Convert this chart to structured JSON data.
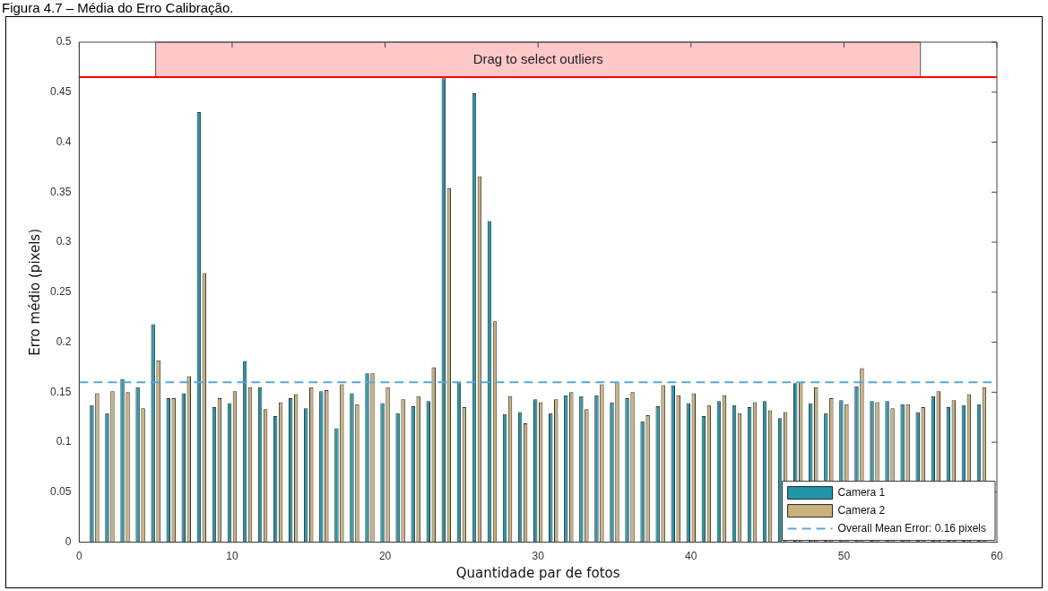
{
  "chart_data": {
    "type": "bar",
    "title": "Figura 4.7 – Média do Erro Calibração.",
    "xlabel": "Quantidade par de fotos",
    "ylabel": "Erro médio (pixels)",
    "x": [
      1,
      2,
      3,
      4,
      5,
      6,
      7,
      8,
      9,
      10,
      11,
      12,
      13,
      14,
      15,
      16,
      17,
      18,
      19,
      20,
      21,
      22,
      23,
      24,
      25,
      26,
      27,
      28,
      29,
      30,
      31,
      32,
      33,
      34,
      35,
      36,
      37,
      38,
      39,
      40,
      41,
      42,
      43,
      44,
      45,
      46,
      47,
      48,
      49,
      50,
      51,
      52,
      53,
      54,
      55,
      56,
      57,
      58,
      59
    ],
    "series": [
      {
        "name": "Camera 1",
        "color": "#2196a8",
        "values": [
          0.137,
          0.129,
          0.163,
          0.155,
          0.218,
          0.144,
          0.149,
          0.43,
          0.135,
          0.139,
          0.181,
          0.155,
          0.126,
          0.144,
          0.134,
          0.151,
          0.114,
          0.149,
          0.169,
          0.139,
          0.129,
          0.136,
          0.141,
          0.464,
          0.16,
          0.449,
          0.321,
          0.128,
          0.13,
          0.143,
          0.129,
          0.147,
          0.146,
          0.147,
          0.14,
          0.144,
          0.121,
          0.136,
          0.157,
          0.139,
          0.126,
          0.141,
          0.137,
          0.135,
          0.141,
          0.124,
          0.159,
          0.139,
          0.129,
          0.142,
          0.156,
          0.141,
          0.141,
          0.138,
          0.13,
          0.146,
          0.135,
          0.137,
          0.138
        ]
      },
      {
        "name": "Camera 2",
        "color": "#c9b27a",
        "values": [
          0.149,
          0.151,
          0.15,
          0.134,
          0.182,
          0.144,
          0.166,
          0.269,
          0.144,
          0.151,
          0.155,
          0.133,
          0.14,
          0.148,
          0.155,
          0.152,
          0.158,
          0.138,
          0.169,
          0.155,
          0.143,
          0.146,
          0.175,
          0.354,
          0.135,
          0.366,
          0.221,
          0.146,
          0.119,
          0.14,
          0.143,
          0.15,
          0.133,
          0.158,
          0.16,
          0.15,
          0.127,
          0.157,
          0.147,
          0.149,
          0.137,
          0.147,
          0.129,
          0.14,
          0.132,
          0.13,
          0.16,
          0.155,
          0.144,
          0.138,
          0.174,
          0.14,
          0.134,
          0.138,
          0.135,
          0.151,
          0.142,
          0.148,
          0.155
        ]
      }
    ],
    "xlim": [
      0,
      60
    ],
    "xticks": [
      0,
      10,
      20,
      30,
      40,
      50,
      60
    ],
    "ylim": [
      0,
      0.5
    ],
    "yticks": [
      0,
      0.05,
      0.1,
      0.15,
      0.2,
      0.25,
      0.3,
      0.35,
      0.4,
      0.45,
      0.5
    ],
    "ref_lines": [
      {
        "axis": "y",
        "value": 0.16,
        "label": "Overall Mean Error: 0.16 pixels",
        "color": "#5aa6dc",
        "line_style": "dashed"
      },
      {
        "axis": "y",
        "value": 0.465,
        "color": "#ff0000",
        "line_style": "solid"
      }
    ],
    "bands": [
      {
        "axis": "y",
        "from": 0.465,
        "to": 0.5,
        "label": "Drag to select outliers",
        "color": "#ffc8c8"
      }
    ],
    "grid": false,
    "legend": "bottom right"
  }
}
